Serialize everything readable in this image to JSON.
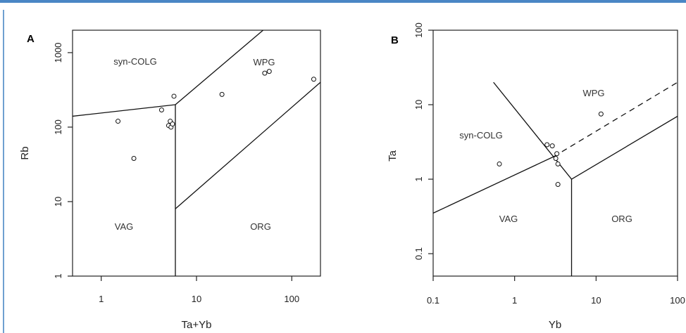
{
  "chart_data": [
    {
      "type": "scatter",
      "panel_label": "A",
      "xlabel": "Ta+Yb",
      "ylabel": "Rb",
      "xscale": "log",
      "yscale": "log",
      "xlim": [
        0.5,
        200
      ],
      "ylim": [
        1,
        2000
      ],
      "xticks": [
        1,
        10,
        100
      ],
      "xtick_labels": [
        "1",
        "10",
        "100"
      ],
      "yticks": [
        1,
        10,
        100,
        1000
      ],
      "ytick_labels": [
        "1",
        "10",
        "100",
        "1000"
      ],
      "fields": [
        "syn-COLG",
        "WPG",
        "VAG",
        "ORG"
      ],
      "boundaries": [
        [
          [
            0.5,
            140
          ],
          [
            6,
            200
          ]
        ],
        [
          [
            6,
            200
          ],
          [
            50,
            2000
          ]
        ],
        [
          [
            6,
            200
          ],
          [
            6,
            1
          ]
        ],
        [
          [
            6,
            8
          ],
          [
            200,
            400
          ]
        ]
      ],
      "points": [
        [
          1.5,
          120
        ],
        [
          2.2,
          38
        ],
        [
          4.3,
          170
        ],
        [
          5.1,
          105
        ],
        [
          5.3,
          120
        ],
        [
          5.4,
          100
        ],
        [
          5.6,
          110
        ],
        [
          5.8,
          260
        ],
        [
          18.5,
          275
        ],
        [
          52,
          530
        ],
        [
          58,
          560
        ],
        [
          170,
          440
        ]
      ]
    },
    {
      "type": "scatter",
      "panel_label": "B",
      "xlabel": "Yb",
      "ylabel": "Ta",
      "xscale": "log",
      "yscale": "log",
      "xlim": [
        0.1,
        100
      ],
      "ylim": [
        0.05,
        100
      ],
      "xticks": [
        0.1,
        1,
        10,
        100
      ],
      "xtick_labels": [
        "0.1",
        "1",
        "10",
        "100"
      ],
      "yticks": [
        0.1,
        1,
        10,
        100
      ],
      "ytick_labels": [
        "0.1",
        "1",
        "10",
        "100"
      ],
      "fields": [
        "syn-COLG",
        "WPG",
        "VAG",
        "ORG"
      ],
      "boundaries": [
        [
          [
            0.1,
            0.35
          ],
          [
            3,
            2
          ]
        ],
        [
          [
            0.55,
            20
          ],
          [
            5,
            1
          ]
        ],
        [
          [
            5,
            1
          ],
          [
            5,
            0.05
          ]
        ],
        [
          [
            5,
            1
          ],
          [
            100,
            7
          ]
        ]
      ],
      "dashed_boundary": [
        [
          3,
          2
        ],
        [
          100,
          20
        ]
      ],
      "points": [
        [
          0.65,
          1.6
        ],
        [
          2.5,
          2.9
        ],
        [
          2.9,
          2.8
        ],
        [
          3.2,
          1.9
        ],
        [
          3.3,
          2.2
        ],
        [
          3.4,
          1.6
        ],
        [
          3.4,
          0.85
        ],
        [
          11.5,
          7.5
        ]
      ]
    }
  ]
}
